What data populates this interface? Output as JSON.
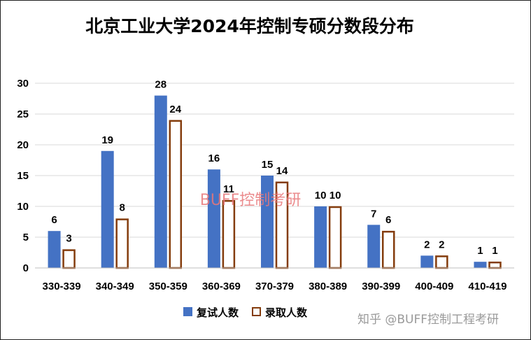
{
  "chart_data": {
    "type": "bar",
    "title": "北京工业大学2024年控制专硕分数段分布",
    "categories": [
      "330-339",
      "340-349",
      "350-359",
      "360-369",
      "370-379",
      "380-389",
      "390-399",
      "400-409",
      "410-419"
    ],
    "series": [
      {
        "name": "复试人数",
        "values": [
          6,
          19,
          28,
          16,
          15,
          10,
          7,
          2,
          1
        ],
        "color": "#4472c4"
      },
      {
        "name": "录取人数",
        "values": [
          3,
          8,
          24,
          11,
          14,
          10,
          6,
          2,
          1
        ],
        "color": "#ffffff",
        "stroke": "#843c0c"
      }
    ],
    "yticks": [
      0,
      5,
      10,
      15,
      20,
      25,
      30
    ],
    "ylim": [
      0,
      30
    ],
    "grid": true,
    "legend": "bottom",
    "xlabel": "",
    "ylabel": "",
    "watermark": "BUFF控制考研",
    "credit": "知乎 @BUFF控制工程考研"
  }
}
